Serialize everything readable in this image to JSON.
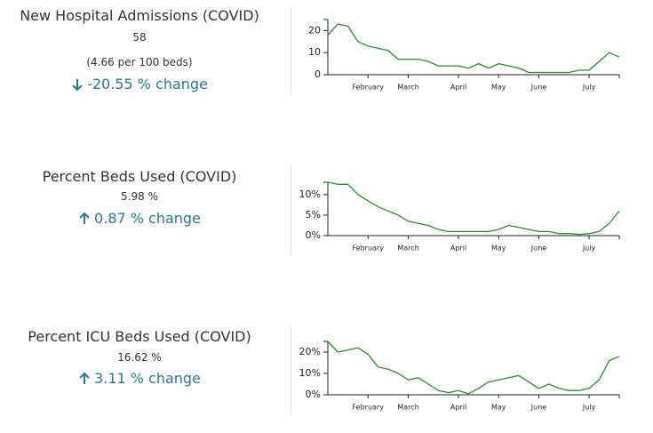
{
  "chart_data": [
    {
      "type": "line",
      "title": "New Hospital Admissions (COVID)",
      "value": "58",
      "subvalue": "(4.66 per 100 beds)",
      "change": "-20.55 % change",
      "categories": [
        null,
        null,
        null,
        null,
        "February",
        null,
        null,
        null,
        "March",
        null,
        null,
        null,
        null,
        "April",
        null,
        null,
        null,
        "May",
        null,
        null,
        null,
        "June",
        null,
        null,
        null,
        null,
        "July",
        null,
        null,
        null
      ],
      "series": [
        {
          "name": "New Hospital Admissions (COVID)",
          "color": "#2a8a2a",
          "values": [
            18,
            23,
            22,
            15,
            13,
            12,
            11,
            7,
            7,
            7,
            6,
            4,
            4,
            4,
            3,
            5,
            3,
            5,
            4,
            3,
            1,
            1,
            1,
            1,
            1,
            2,
            2,
            6,
            10,
            8
          ]
        }
      ],
      "ylim": [
        0,
        25
      ],
      "yticks": [
        0,
        10,
        20
      ]
    },
    {
      "type": "line",
      "title": "Percent Beds Used (COVID)",
      "value": "5.98 %",
      "change": "0.87 % change",
      "categories": [
        null,
        null,
        null,
        null,
        "February",
        null,
        null,
        null,
        "March",
        null,
        null,
        null,
        null,
        "April",
        null,
        null,
        null,
        "May",
        null,
        null,
        null,
        "June",
        null,
        null,
        null,
        null,
        "July",
        null,
        null,
        null
      ],
      "series": [
        {
          "name": "Percent Beds Used (COVID)",
          "color": "#2a8a2a",
          "values": [
            13,
            12.5,
            12.5,
            10,
            8.5,
            7,
            6,
            5,
            3.5,
            3,
            2.5,
            1.5,
            1,
            1,
            1,
            1,
            1,
            1.5,
            2.5,
            2,
            1.5,
            1,
            1,
            0.5,
            0.5,
            0.3,
            0.5,
            1,
            3,
            6
          ]
        }
      ],
      "ylim": [
        0,
        13
      ],
      "yticks": [
        {
          "value": 0,
          "label": "0%"
        },
        {
          "value": 5,
          "label": "5%"
        },
        {
          "value": 10,
          "label": "10%"
        }
      ]
    },
    {
      "type": "line",
      "title": "Percent ICU Beds Used (COVID)",
      "value": "16.62 %",
      "change": "3.11 % change",
      "categories": [
        null,
        null,
        null,
        null,
        "February",
        null,
        null,
        null,
        "March",
        null,
        null,
        null,
        null,
        "April",
        null,
        null,
        null,
        "May",
        null,
        null,
        null,
        "June",
        null,
        null,
        null,
        null,
        "July",
        null,
        null,
        null
      ],
      "series": [
        {
          "name": "Percent ICU Beds Used (COVID)",
          "color": "#2a8a2a",
          "values": [
            25,
            20,
            21,
            22,
            19,
            13,
            12,
            10,
            7,
            8,
            5,
            2,
            1,
            2,
            0.5,
            3,
            6,
            7,
            8,
            9,
            6,
            3,
            5,
            3,
            2,
            2,
            3,
            7,
            16,
            18
          ]
        }
      ],
      "ylim": [
        0,
        25
      ],
      "yticks": [
        {
          "value": 0,
          "label": "0%"
        },
        {
          "value": 10,
          "label": "10%"
        },
        {
          "value": 20,
          "label": "20%"
        }
      ]
    }
  ]
}
